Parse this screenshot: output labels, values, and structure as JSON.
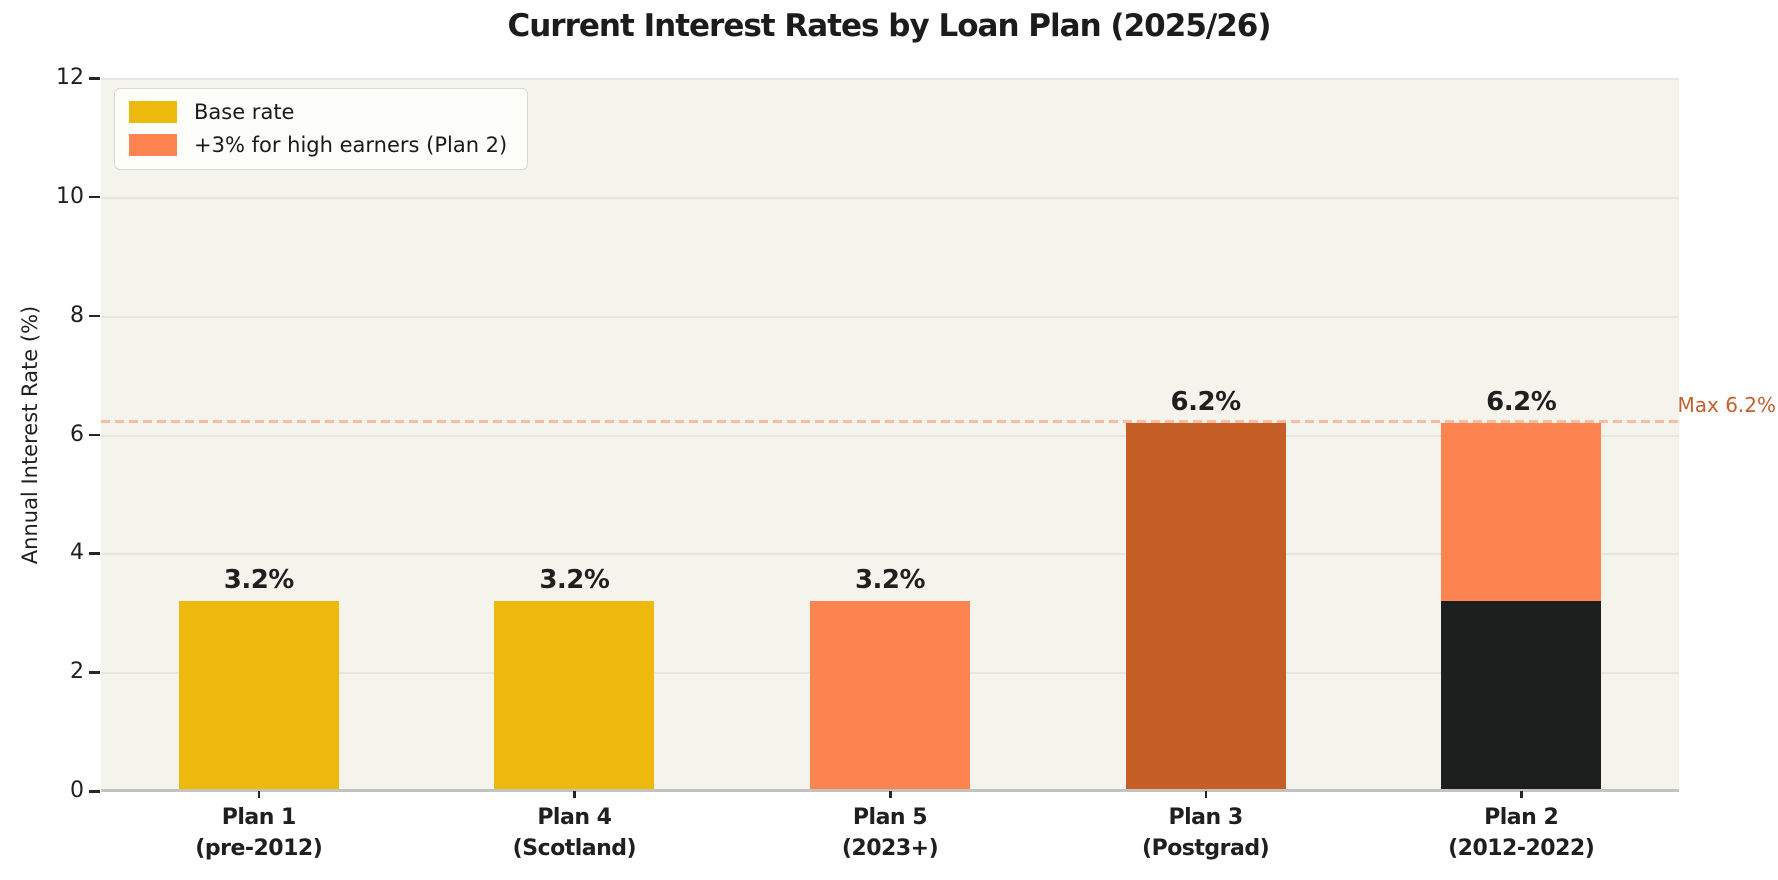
{
  "chart_data": {
    "type": "bar",
    "title": "Current Interest Rates by Loan Plan (2025/26)",
    "ylabel": "Annual Interest Rate (%)",
    "ylim": [
      0,
      12
    ],
    "yticks": [
      0,
      2,
      4,
      6,
      8,
      10,
      12
    ],
    "grid": true,
    "legend_position": "upper left",
    "legend": [
      {
        "label": "Base rate",
        "color": "#EEB90D"
      },
      {
        "label": "+3% for high earners (Plan 2)",
        "color": "#FB8450"
      }
    ],
    "categories": [
      "Plan 1 (pre-2012)",
      "Plan 4 (Scotland)",
      "Plan 5 (2023+)",
      "Plan 3 (Postgrad)",
      "Plan 2 (2012-2022)"
    ],
    "bars": [
      {
        "name": "plan-1",
        "label_lines": [
          "Plan 1",
          "(pre-2012)"
        ],
        "total": 3.2,
        "annotation": "3.2%",
        "segments": [
          {
            "value": 3.2,
            "color": "#EEB90D"
          }
        ]
      },
      {
        "name": "plan-4",
        "label_lines": [
          "Plan 4",
          "(Scotland)"
        ],
        "total": 3.2,
        "annotation": "3.2%",
        "segments": [
          {
            "value": 3.2,
            "color": "#EEB90D"
          }
        ]
      },
      {
        "name": "plan-5",
        "label_lines": [
          "Plan 5",
          "(2023+)"
        ],
        "total": 3.2,
        "annotation": "3.2%",
        "segments": [
          {
            "value": 3.2,
            "color": "#FB8450"
          }
        ]
      },
      {
        "name": "plan-3",
        "label_lines": [
          "Plan 3",
          "(Postgrad)"
        ],
        "total": 6.2,
        "annotation": "6.2%",
        "segments": [
          {
            "value": 6.2,
            "color": "#C65F27"
          }
        ]
      },
      {
        "name": "plan-2",
        "label_lines": [
          "Plan 2",
          "(2012-2022)"
        ],
        "total": 6.2,
        "annotation": "6.2%",
        "segments": [
          {
            "value": 3.2,
            "color": "#1D1F1E"
          },
          {
            "value": 3.0,
            "color": "#FB8450"
          }
        ]
      }
    ],
    "reference_line": {
      "value": 6.2,
      "label": "Max 6.2%",
      "line_color": "#F9BCA3",
      "label_color": "#C4602F"
    }
  },
  "style": {
    "plot_bg": "#F4F3EC",
    "grid_color": "#E7E5DD",
    "axis_line_color": "#C2C2BE",
    "tick_color": "#262626"
  }
}
